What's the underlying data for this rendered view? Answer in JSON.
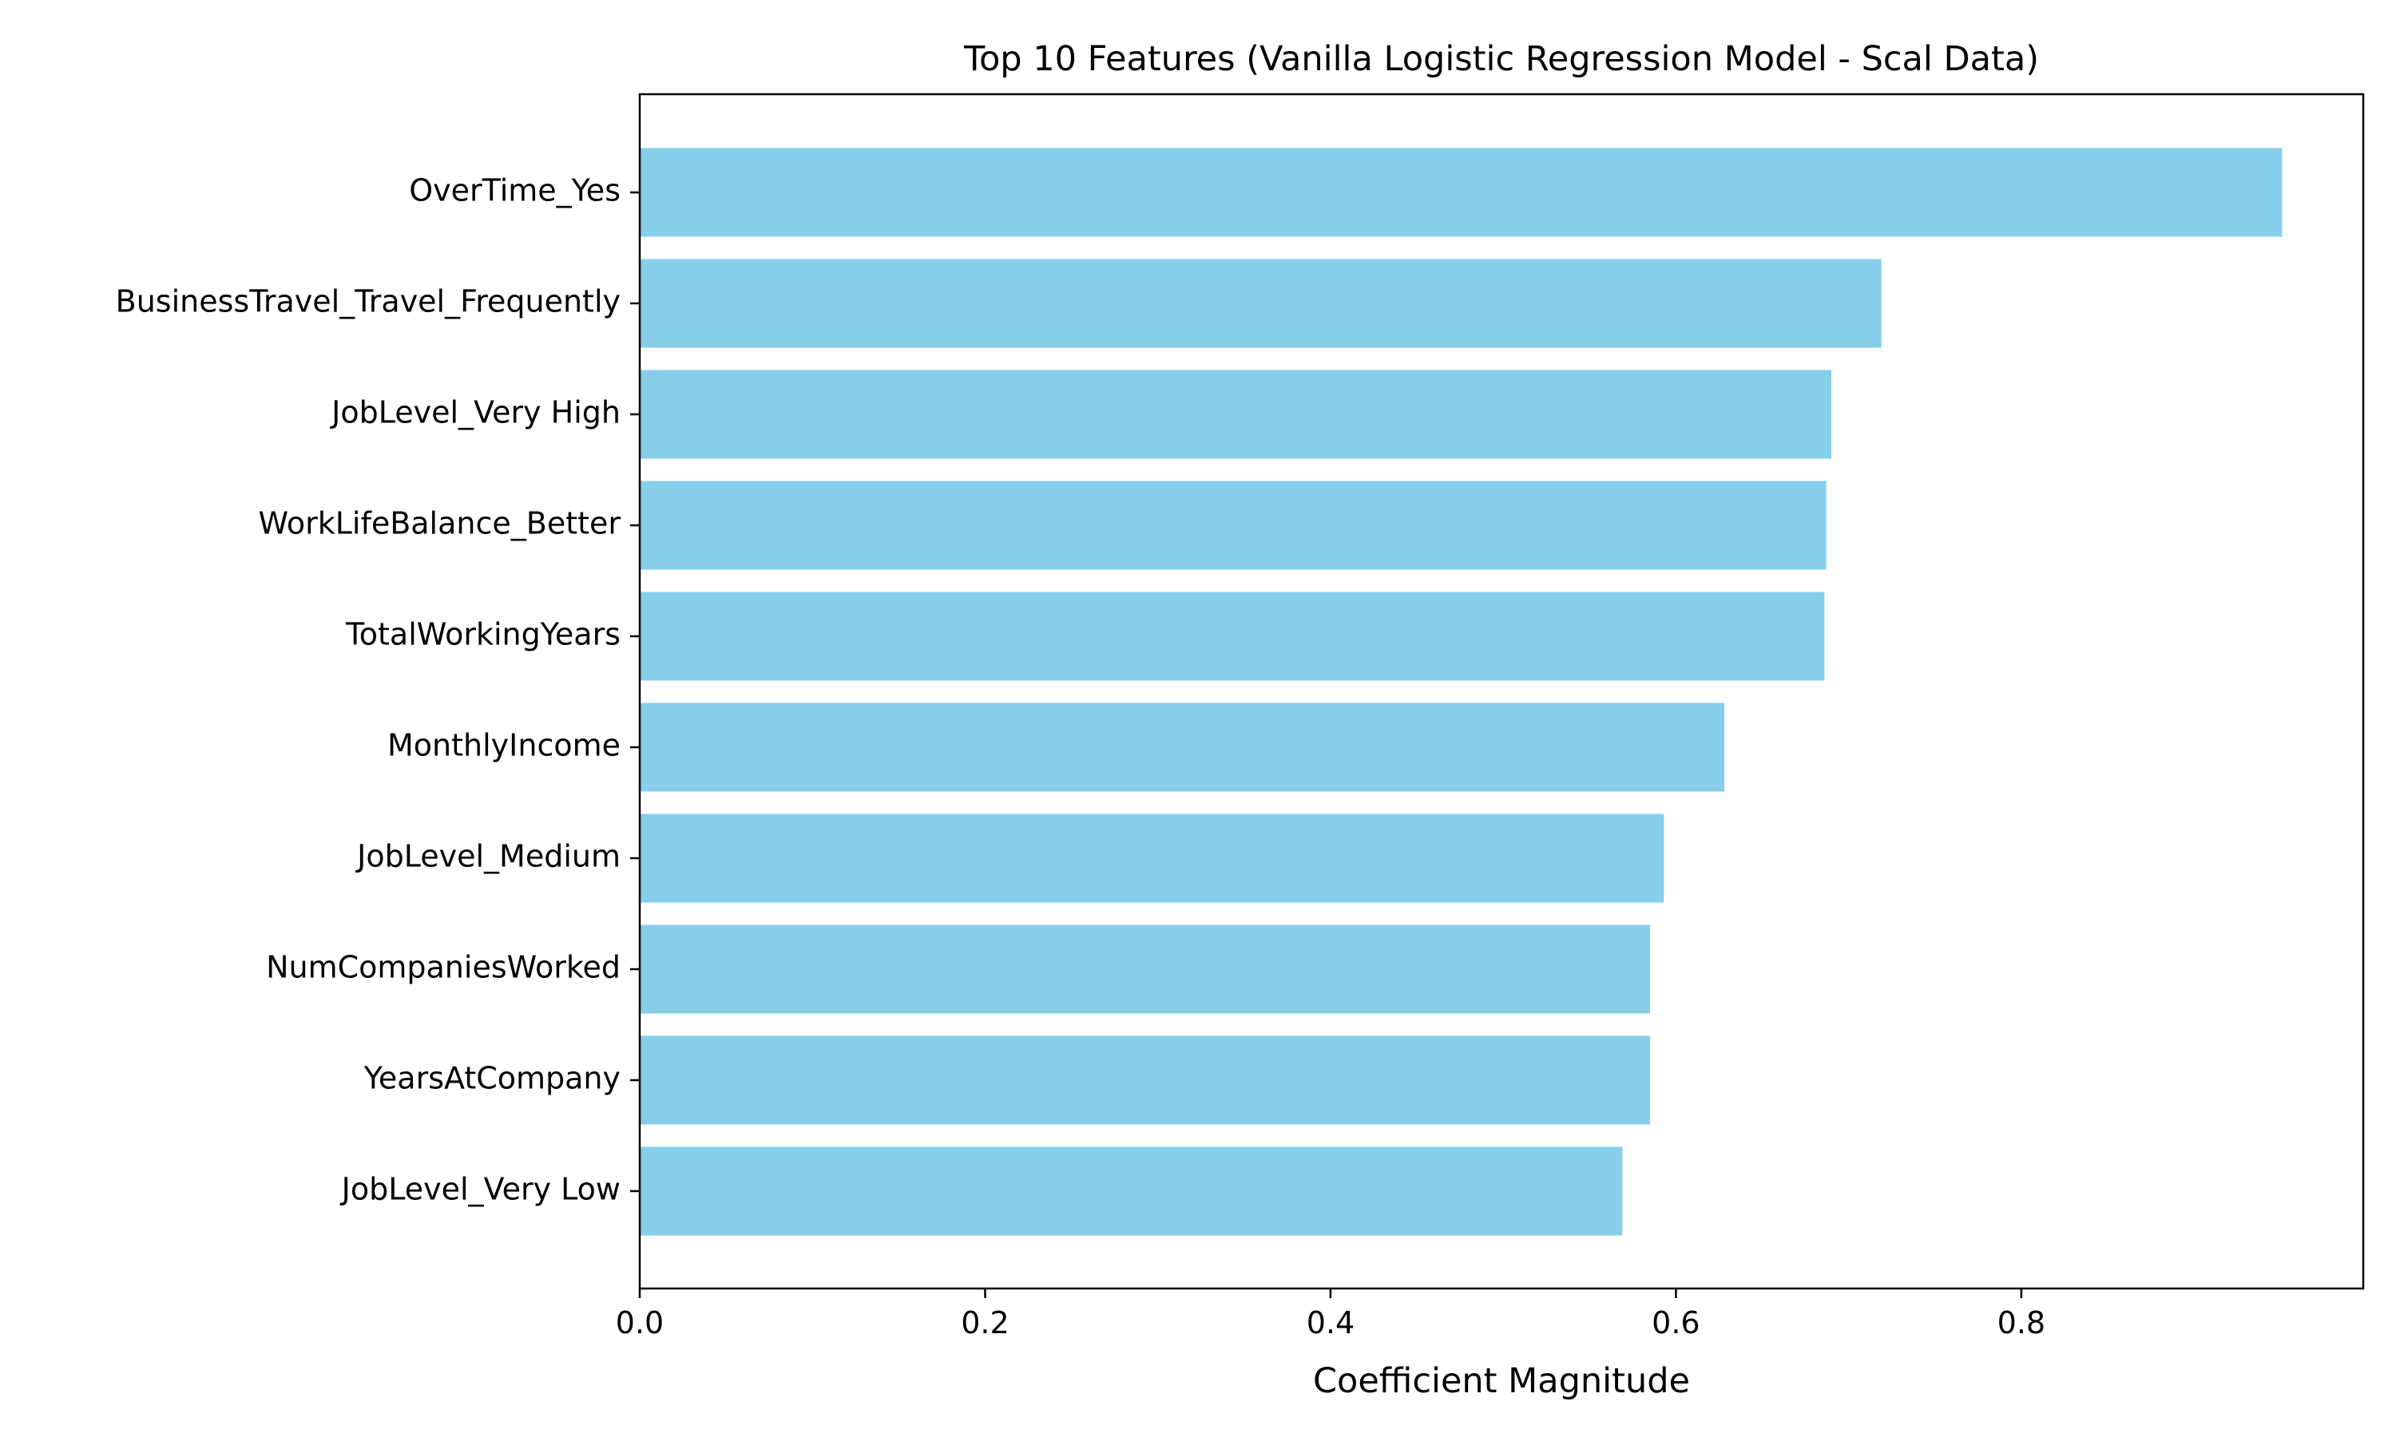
{
  "chart_data": {
    "type": "bar",
    "orientation": "horizontal",
    "title": "Top 10 Features (Vanilla Logistic Regression Model - Scal Data)",
    "xlabel": "Coefficient Magnitude",
    "ylabel": "",
    "categories": [
      "OverTime_Yes",
      "BusinessTravel_Travel_Frequently",
      "JobLevel_Very High",
      "WorkLifeBalance_Better",
      "TotalWorkingYears",
      "MonthlyIncome",
      "JobLevel_Medium",
      "NumCompaniesWorked",
      "YearsAtCompany",
      "JobLevel_Very Low"
    ],
    "values": [
      0.951,
      0.719,
      0.69,
      0.687,
      0.686,
      0.628,
      0.593,
      0.585,
      0.585,
      0.569
    ],
    "xlim": [
      0,
      0.998
    ],
    "xticks": [
      0.0,
      0.2,
      0.4,
      0.6,
      0.8
    ],
    "xtick_labels": [
      "0.0",
      "0.2",
      "0.4",
      "0.6",
      "0.8"
    ],
    "bar_color": "#87ceeb",
    "grid": false,
    "legend": "none"
  }
}
